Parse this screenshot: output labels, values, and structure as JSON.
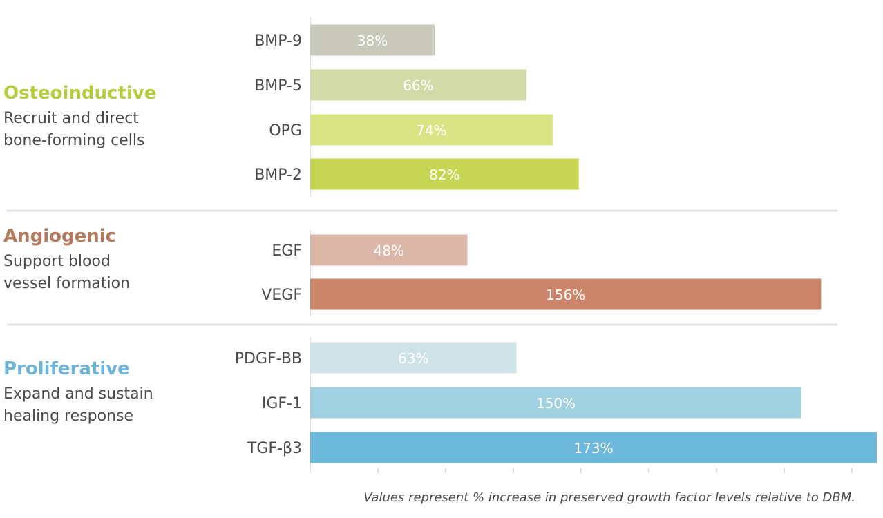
{
  "chart_data": {
    "type": "bar",
    "orientation": "horizontal",
    "unit": "%",
    "xlim": [
      0,
      168
    ],
    "groups": [
      {
        "title": "Osteoinductive",
        "subtitle": [
          "Recruit and direct",
          "bone-forming cells"
        ],
        "title_color": "#b5cc3c",
        "bars": [
          {
            "category": "BMP-9",
            "value": 38,
            "label": "38%",
            "color": "#c9c9bb"
          },
          {
            "category": "BMP-5",
            "value": 66,
            "label": "66%",
            "color": "#d2dba7"
          },
          {
            "category": "OPG",
            "value": 74,
            "label": "74%",
            "color": "#d9e484"
          },
          {
            "category": "BMP-2",
            "value": 82,
            "label": "82%",
            "color": "#c6d553"
          }
        ]
      },
      {
        "title": "Angiogenic",
        "subtitle": [
          "Support blood",
          "vessel formation"
        ],
        "title_color": "#b57a5e",
        "bars": [
          {
            "category": "EGF",
            "value": 48,
            "label": "48%",
            "color": "#dbb7a8"
          },
          {
            "category": "VEGF",
            "value": 156,
            "label": "156%",
            "color": "#cb856a"
          }
        ]
      },
      {
        "title": "Proliferative",
        "subtitle": [
          "Expand and sustain",
          "healing response"
        ],
        "title_color": "#6db4d9",
        "bars": [
          {
            "category": "PDGF-BB",
            "value": 63,
            "label": "63%",
            "color": "#cfe2e7"
          },
          {
            "category": "IGF-1",
            "value": 150,
            "label": "150%",
            "color": "#a2d2e1"
          },
          {
            "category": "TGF-β3",
            "value": 173,
            "label": "173%",
            "color": "#6cb9db"
          }
        ]
      }
    ],
    "footnote": "Values represent % increase in preserved growth factor levels relative to DBM."
  }
}
